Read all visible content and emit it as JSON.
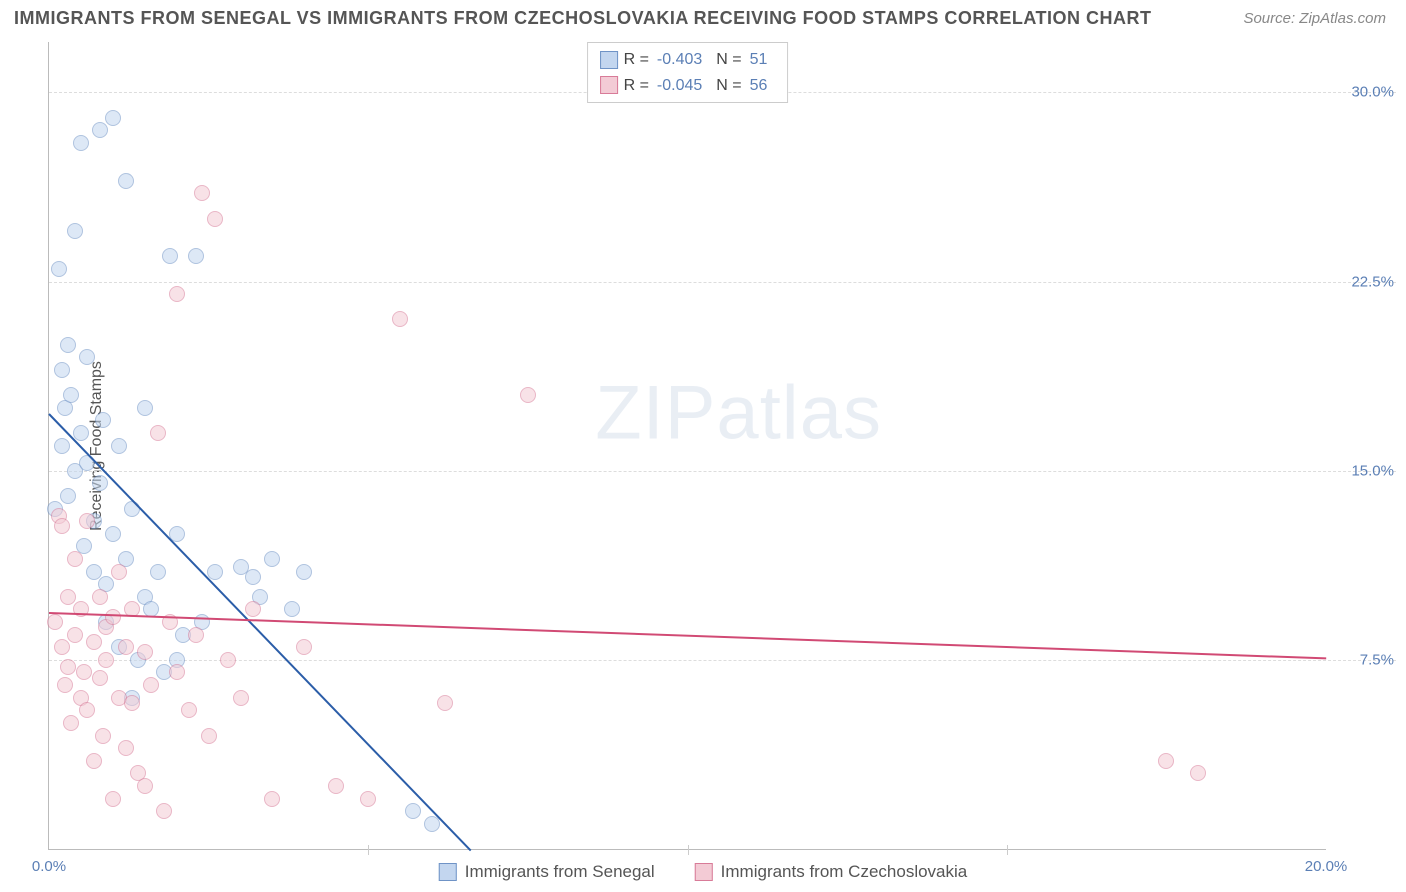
{
  "title": "IMMIGRANTS FROM SENEGAL VS IMMIGRANTS FROM CZECHOSLOVAKIA RECEIVING FOOD STAMPS CORRELATION CHART",
  "source": "Source: ZipAtlas.com",
  "watermark_bold": "ZIP",
  "watermark_thin": "atlas",
  "y_axis_title": "Receiving Food Stamps",
  "chart": {
    "type": "scatter",
    "xlim": [
      0,
      20
    ],
    "ylim": [
      0,
      32
    ],
    "x_ticks": [
      0,
      20
    ],
    "x_tick_labels": [
      "0.0%",
      "20.0%"
    ],
    "x_minor_ticks": [
      5,
      10,
      15
    ],
    "y_ticks": [
      7.5,
      15.0,
      22.5,
      30.0
    ],
    "y_tick_labels": [
      "7.5%",
      "15.0%",
      "22.5%",
      "30.0%"
    ],
    "background_color": "#ffffff",
    "grid_color": "#dddddd",
    "axis_color": "#bbbbbb",
    "marker_radius": 8,
    "series": [
      {
        "name": "Immigrants from Senegal",
        "fill": "#c3d6ef",
        "stroke": "#6f93c6",
        "fill_opacity": 0.55,
        "r_value": "-0.403",
        "n_value": "51",
        "trend": {
          "x1": 0,
          "y1": 17.3,
          "x2": 6.6,
          "y2": 0,
          "color": "#2b5da8"
        },
        "points": [
          [
            0.1,
            13.5
          ],
          [
            0.15,
            23.0
          ],
          [
            0.2,
            16.0
          ],
          [
            0.2,
            19.0
          ],
          [
            0.25,
            17.5
          ],
          [
            0.3,
            20.0
          ],
          [
            0.3,
            14.0
          ],
          [
            0.35,
            18.0
          ],
          [
            0.4,
            24.5
          ],
          [
            0.4,
            15.0
          ],
          [
            0.5,
            28.0
          ],
          [
            0.5,
            16.5
          ],
          [
            0.55,
            12.0
          ],
          [
            0.6,
            15.3
          ],
          [
            0.6,
            19.5
          ],
          [
            0.7,
            13.0
          ],
          [
            0.7,
            11.0
          ],
          [
            0.8,
            28.5
          ],
          [
            0.8,
            14.5
          ],
          [
            0.85,
            17.0
          ],
          [
            0.9,
            10.5
          ],
          [
            0.9,
            9.0
          ],
          [
            1.0,
            29.0
          ],
          [
            1.0,
            12.5
          ],
          [
            1.1,
            8.0
          ],
          [
            1.1,
            16.0
          ],
          [
            1.2,
            26.5
          ],
          [
            1.2,
            11.5
          ],
          [
            1.3,
            13.5
          ],
          [
            1.3,
            6.0
          ],
          [
            1.4,
            7.5
          ],
          [
            1.5,
            10.0
          ],
          [
            1.5,
            17.5
          ],
          [
            1.6,
            9.5
          ],
          [
            1.7,
            11.0
          ],
          [
            1.8,
            7.0
          ],
          [
            1.9,
            23.5
          ],
          [
            2.0,
            12.5
          ],
          [
            2.0,
            7.5
          ],
          [
            2.1,
            8.5
          ],
          [
            2.3,
            23.5
          ],
          [
            2.4,
            9.0
          ],
          [
            2.6,
            11.0
          ],
          [
            3.0,
            11.2
          ],
          [
            3.2,
            10.8
          ],
          [
            3.3,
            10.0
          ],
          [
            3.5,
            11.5
          ],
          [
            3.8,
            9.5
          ],
          [
            4.0,
            11.0
          ],
          [
            5.7,
            1.5
          ],
          [
            6.0,
            1.0
          ]
        ]
      },
      {
        "name": "Immigrants from Czechoslovakia",
        "fill": "#f3cbd5",
        "stroke": "#d87b98",
        "fill_opacity": 0.55,
        "r_value": "-0.045",
        "n_value": "56",
        "trend": {
          "x1": 0,
          "y1": 9.4,
          "x2": 20,
          "y2": 7.6,
          "color": "#d14a74"
        },
        "points": [
          [
            0.1,
            9.0
          ],
          [
            0.15,
            13.2
          ],
          [
            0.2,
            8.0
          ],
          [
            0.2,
            12.8
          ],
          [
            0.25,
            6.5
          ],
          [
            0.3,
            7.2
          ],
          [
            0.3,
            10.0
          ],
          [
            0.35,
            5.0
          ],
          [
            0.4,
            8.5
          ],
          [
            0.4,
            11.5
          ],
          [
            0.5,
            6.0
          ],
          [
            0.5,
            9.5
          ],
          [
            0.55,
            7.0
          ],
          [
            0.6,
            5.5
          ],
          [
            0.6,
            13.0
          ],
          [
            0.7,
            8.2
          ],
          [
            0.7,
            3.5
          ],
          [
            0.8,
            10.0
          ],
          [
            0.8,
            6.8
          ],
          [
            0.85,
            4.5
          ],
          [
            0.9,
            8.8
          ],
          [
            0.9,
            7.5
          ],
          [
            1.0,
            2.0
          ],
          [
            1.0,
            9.2
          ],
          [
            1.1,
            6.0
          ],
          [
            1.1,
            11.0
          ],
          [
            1.2,
            4.0
          ],
          [
            1.2,
            8.0
          ],
          [
            1.3,
            5.8
          ],
          [
            1.3,
            9.5
          ],
          [
            1.4,
            3.0
          ],
          [
            1.5,
            7.8
          ],
          [
            1.5,
            2.5
          ],
          [
            1.6,
            6.5
          ],
          [
            1.7,
            16.5
          ],
          [
            1.8,
            1.5
          ],
          [
            1.9,
            9.0
          ],
          [
            2.0,
            22.0
          ],
          [
            2.0,
            7.0
          ],
          [
            2.2,
            5.5
          ],
          [
            2.3,
            8.5
          ],
          [
            2.4,
            26.0
          ],
          [
            2.5,
            4.5
          ],
          [
            2.6,
            25.0
          ],
          [
            2.8,
            7.5
          ],
          [
            3.0,
            6.0
          ],
          [
            3.2,
            9.5
          ],
          [
            3.5,
            2.0
          ],
          [
            4.0,
            8.0
          ],
          [
            4.5,
            2.5
          ],
          [
            5.0,
            2.0
          ],
          [
            5.5,
            21.0
          ],
          [
            6.2,
            5.8
          ],
          [
            7.5,
            18.0
          ],
          [
            17.5,
            3.5
          ],
          [
            18.0,
            3.0
          ]
        ]
      }
    ]
  },
  "legend_labels": {
    "r_label": "R =",
    "n_label": "N ="
  },
  "bottom_legend": [
    "Immigrants from Senegal",
    "Immigrants from Czechoslovakia"
  ]
}
